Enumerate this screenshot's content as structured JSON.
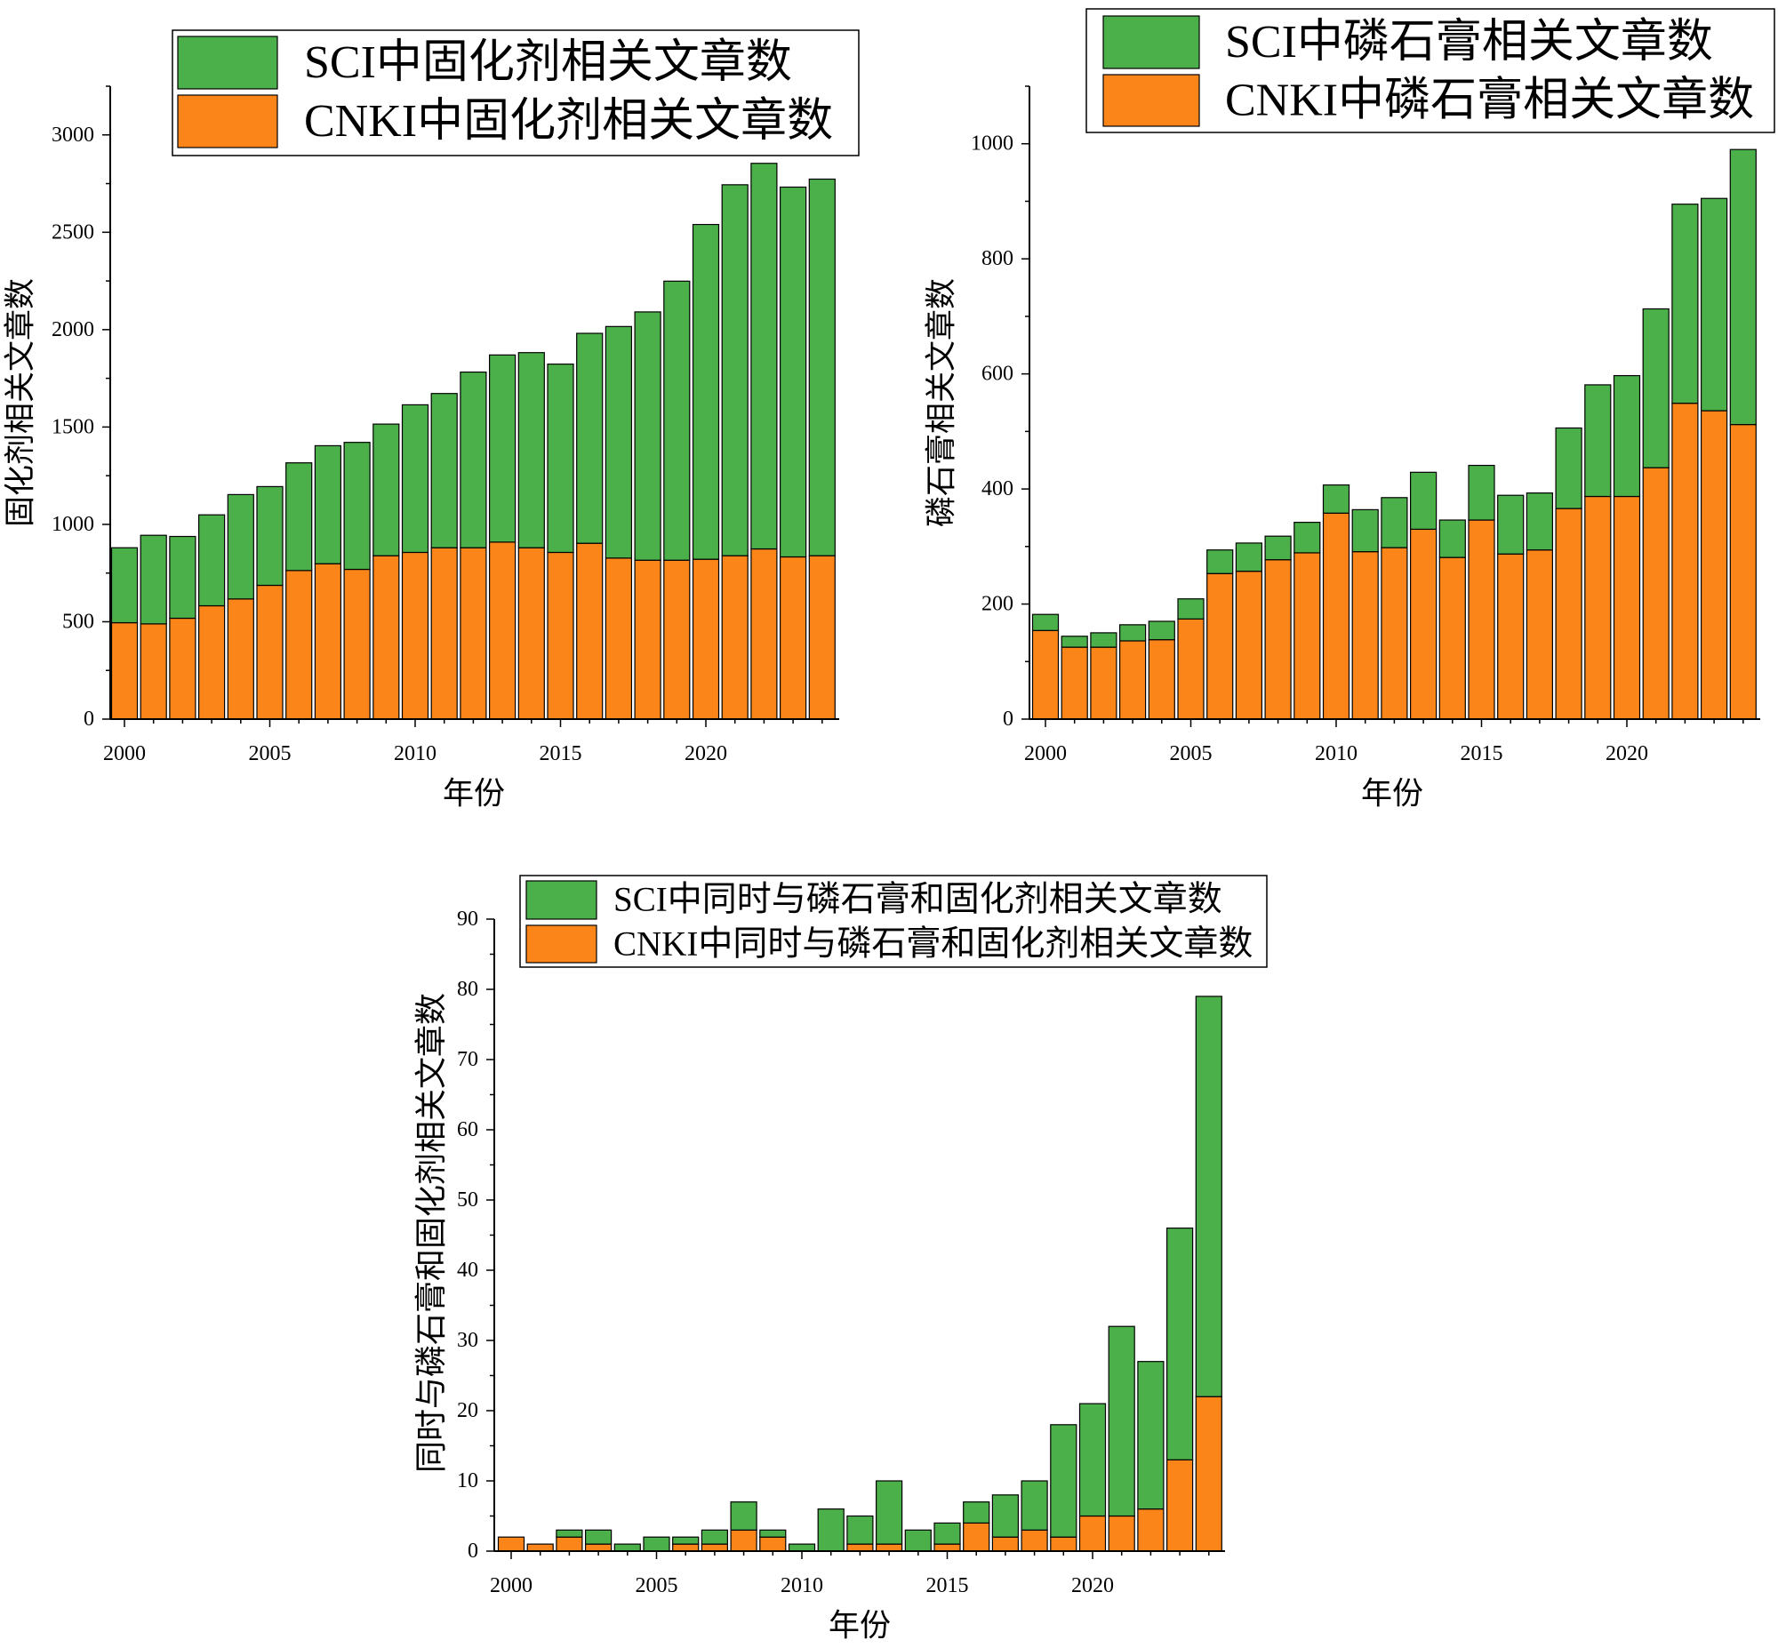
{
  "chart_data": [
    {
      "type": "bar",
      "stacked": true,
      "categories": [
        2000,
        2001,
        2002,
        2003,
        2004,
        2005,
        2006,
        2007,
        2008,
        2009,
        2010,
        2011,
        2012,
        2013,
        2014,
        2015,
        2016,
        2017,
        2018,
        2019,
        2020,
        2021,
        2022,
        2023,
        2024
      ],
      "series": [
        {
          "name": "SCI中固化剂相关文章数",
          "color": "#4cb04a",
          "values": [
            385,
            455,
            420,
            467,
            536,
            507,
            553,
            606,
            652,
            676,
            758,
            792,
            902,
            961,
            1002,
            967,
            1078,
            1189,
            1275,
            1433,
            1719,
            1905,
            1980,
            1899,
            1934
          ]
        },
        {
          "name": "CNKI中固化剂相关文章数",
          "color": "#fb8519",
          "values": [
            495,
            489,
            518,
            582,
            617,
            687,
            763,
            798,
            769,
            839,
            856,
            880,
            880,
            909,
            880,
            856,
            903,
            827,
            816,
            816,
            821,
            839,
            874,
            833,
            839
          ]
        }
      ],
      "xlabel": "年份",
      "ylabel": "固化剂相关文章数",
      "xticks": [
        2000,
        2005,
        2010,
        2015,
        2020
      ],
      "yticks": [
        0,
        500,
        1000,
        1500,
        2000,
        2500,
        3000
      ],
      "ylim": [
        0,
        3250
      ],
      "legend": "top-right"
    },
    {
      "type": "bar",
      "stacked": true,
      "categories": [
        2000,
        2001,
        2002,
        2003,
        2004,
        2005,
        2006,
        2007,
        2008,
        2009,
        2010,
        2011,
        2012,
        2013,
        2014,
        2015,
        2016,
        2017,
        2018,
        2019,
        2020,
        2021,
        2022,
        2023,
        2024
      ],
      "series": [
        {
          "name": "SCI中磷石膏相关文章数",
          "color": "#4cb04a",
          "values": [
            28,
            19,
            25,
            28,
            32,
            35,
            41,
            49,
            41,
            53,
            49,
            73,
            87,
            99,
            65,
            95,
            102,
            99,
            140,
            194,
            210,
            276,
            346,
            369,
            478
          ]
        },
        {
          "name": "CNKI中磷石膏相关文章数",
          "color": "#fb8519",
          "values": [
            154,
            125,
            125,
            136,
            138,
            174,
            253,
            257,
            277,
            289,
            358,
            291,
            298,
            330,
            281,
            346,
            287,
            294,
            366,
            387,
            387,
            437,
            549,
            536,
            512
          ]
        }
      ],
      "xlabel": "年份",
      "ylabel": "磷石膏相关文章数",
      "xticks": [
        2000,
        2005,
        2010,
        2015,
        2020
      ],
      "yticks": [
        0,
        200,
        400,
        600,
        800,
        1000
      ],
      "ylim": [
        0,
        1100
      ],
      "legend": "top-right"
    },
    {
      "type": "bar",
      "stacked": true,
      "categories": [
        2000,
        2001,
        2002,
        2003,
        2004,
        2005,
        2006,
        2007,
        2008,
        2009,
        2010,
        2011,
        2012,
        2013,
        2014,
        2015,
        2016,
        2017,
        2018,
        2019,
        2020,
        2021,
        2022,
        2023,
        2024
      ],
      "series": [
        {
          "name": "SCI中同时与磷石膏和固化剂相关文章数",
          "color": "#4cb04a",
          "values": [
            0,
            0,
            1,
            2,
            1,
            2,
            1,
            2,
            4,
            1,
            1,
            6,
            4,
            9,
            3,
            3,
            3,
            6,
            7,
            16,
            16,
            27,
            21,
            33,
            57
          ]
        },
        {
          "name": "CNKI中同时与磷石膏和固化剂相关文章数",
          "color": "#fb8519",
          "values": [
            2,
            1,
            2,
            1,
            0,
            0,
            1,
            1,
            3,
            2,
            0,
            0,
            1,
            1,
            0,
            1,
            4,
            2,
            3,
            2,
            5,
            5,
            6,
            13,
            22
          ]
        }
      ],
      "xlabel": "年份",
      "ylabel": "同时与磷石膏和固化剂相关文章数",
      "xticks": [
        2000,
        2005,
        2010,
        2015,
        2020
      ],
      "yticks": [
        0,
        10,
        20,
        30,
        40,
        50,
        60,
        70,
        80,
        90
      ],
      "ylim": [
        0,
        90
      ],
      "legend": "top-center"
    }
  ]
}
